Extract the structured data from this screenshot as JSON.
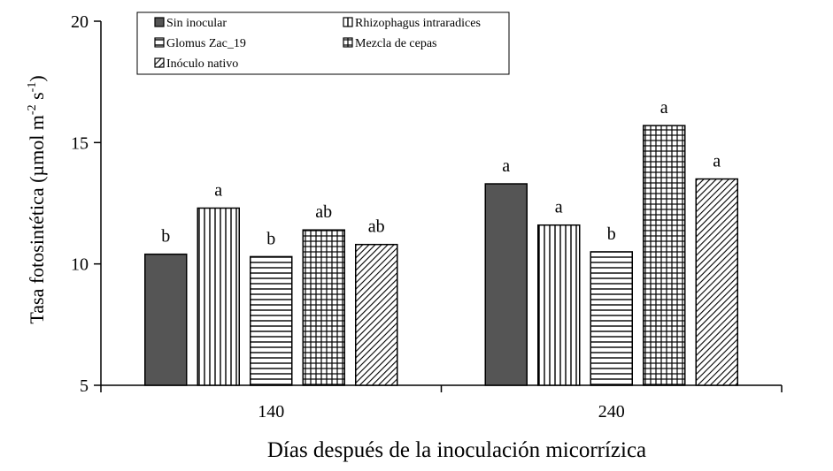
{
  "chart_data": {
    "type": "bar",
    "title": "",
    "xlabel": "Días después de la inoculación micorrízica",
    "ylabel": "Tasa fotosintética (µmol m-2 s-1)",
    "ylabel_parts": {
      "main": "Tasa fotosintética (µmol m",
      "sup1": "-2",
      "mid": " s",
      "sup2": "-1",
      "end": ")"
    },
    "ylim": [
      5,
      20
    ],
    "yticks": [
      5,
      10,
      15,
      20
    ],
    "ytick_labels": [
      "5",
      "10",
      "15",
      "20"
    ],
    "categories": [
      "140",
      "240"
    ],
    "legend_position": "top-left",
    "series": [
      {
        "name": "Sin inocular",
        "pattern": "solid",
        "values": [
          10.4,
          13.3
        ],
        "labels": [
          "b",
          "a"
        ]
      },
      {
        "name": "Rhizophagus intraradices",
        "pattern": "vertical",
        "values": [
          12.3,
          11.6
        ],
        "labels": [
          "a",
          "a"
        ]
      },
      {
        "name": "Glomus Zac_19",
        "pattern": "horizontal",
        "values": [
          10.3,
          10.5
        ],
        "labels": [
          "b",
          "b"
        ]
      },
      {
        "name": "Mezcla de cepas",
        "pattern": "grid",
        "values": [
          11.4,
          15.7
        ],
        "labels": [
          "ab",
          "a"
        ]
      },
      {
        "name": "Inóculo nativo",
        "pattern": "diagonal",
        "values": [
          10.8,
          13.5
        ],
        "labels": [
          "ab",
          "a"
        ]
      }
    ],
    "colors": {
      "solid_fill": "#555555",
      "stroke": "#000000",
      "background": "#ffffff"
    }
  }
}
